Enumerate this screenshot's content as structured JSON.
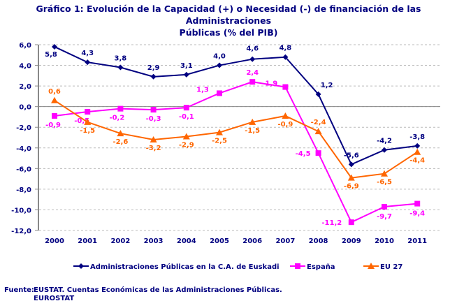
{
  "chart_data": {
    "type": "line",
    "title": "Gráfico 1: Evolución de la Capacidad (+) o Necesidad (-) de financiación de las Administraciones Públicas (% del PIB)",
    "title_line1": "Gráfico 1: Evolución de la Capacidad (+) o Necesidad (-) de financiación de las Administraciones",
    "title_line2": "Públicas (% del PIB)",
    "categories": [
      "2000",
      "2001",
      "2002",
      "2003",
      "2004",
      "2005",
      "2006",
      "2007",
      "2008",
      "2009",
      "2010",
      "2011"
    ],
    "ylim": [
      -12,
      6
    ],
    "yticks": [
      "6,0",
      "4,0",
      "2,0",
      "0,0",
      "-2,0",
      "-4,0",
      "-6,0",
      "-8,0",
      "-10,0",
      "-12,0"
    ],
    "grid": true,
    "legend_position": "bottom",
    "series": [
      {
        "name": "Administraciones Públicas en la C.A. de Euskadi",
        "color": "#000080",
        "marker": "diamond",
        "values": [
          5.8,
          4.3,
          3.8,
          2.9,
          3.1,
          4.0,
          4.6,
          4.8,
          1.2,
          -5.6,
          -4.2,
          -3.8
        ],
        "labels": [
          "5,8",
          "4,3",
          "3,8",
          "2,9",
          "3,1",
          "4,0",
          "4,6",
          "4,8",
          "1,2",
          "-5,6",
          "-4,2",
          "-3,8"
        ]
      },
      {
        "name": "España",
        "color": "#FF00FF",
        "marker": "square",
        "values": [
          -0.9,
          -0.5,
          -0.2,
          -0.3,
          -0.1,
          1.3,
          2.4,
          1.9,
          -4.5,
          -11.2,
          -9.7,
          -9.4
        ],
        "labels": [
          "-0,9",
          "-0,5",
          "-0,2",
          "-0,3",
          "-0,1",
          "1,3",
          "2,4",
          "1,9",
          "-4,5",
          "-11,2",
          "-9,7",
          "-9,4"
        ]
      },
      {
        "name": "EU 27",
        "color": "#FF6600",
        "marker": "triangle",
        "values": [
          0.6,
          -1.5,
          -2.6,
          -3.2,
          -2.9,
          -2.5,
          -1.5,
          -0.9,
          -2.4,
          -6.9,
          -6.5,
          -4.4
        ],
        "labels": [
          "0,6",
          "-1,5",
          "-2,6",
          "-3,2",
          "-2,9",
          "-2,5",
          "-1,5",
          "-0,9",
          "-2,4",
          "-6,9",
          "-6,5",
          "-4,4"
        ]
      }
    ]
  },
  "source": {
    "label": "Fuente:",
    "line1": "EUSTAT. Cuentas Económicas de las Administraciones Públicas.",
    "line2": "EUROSTAT"
  }
}
